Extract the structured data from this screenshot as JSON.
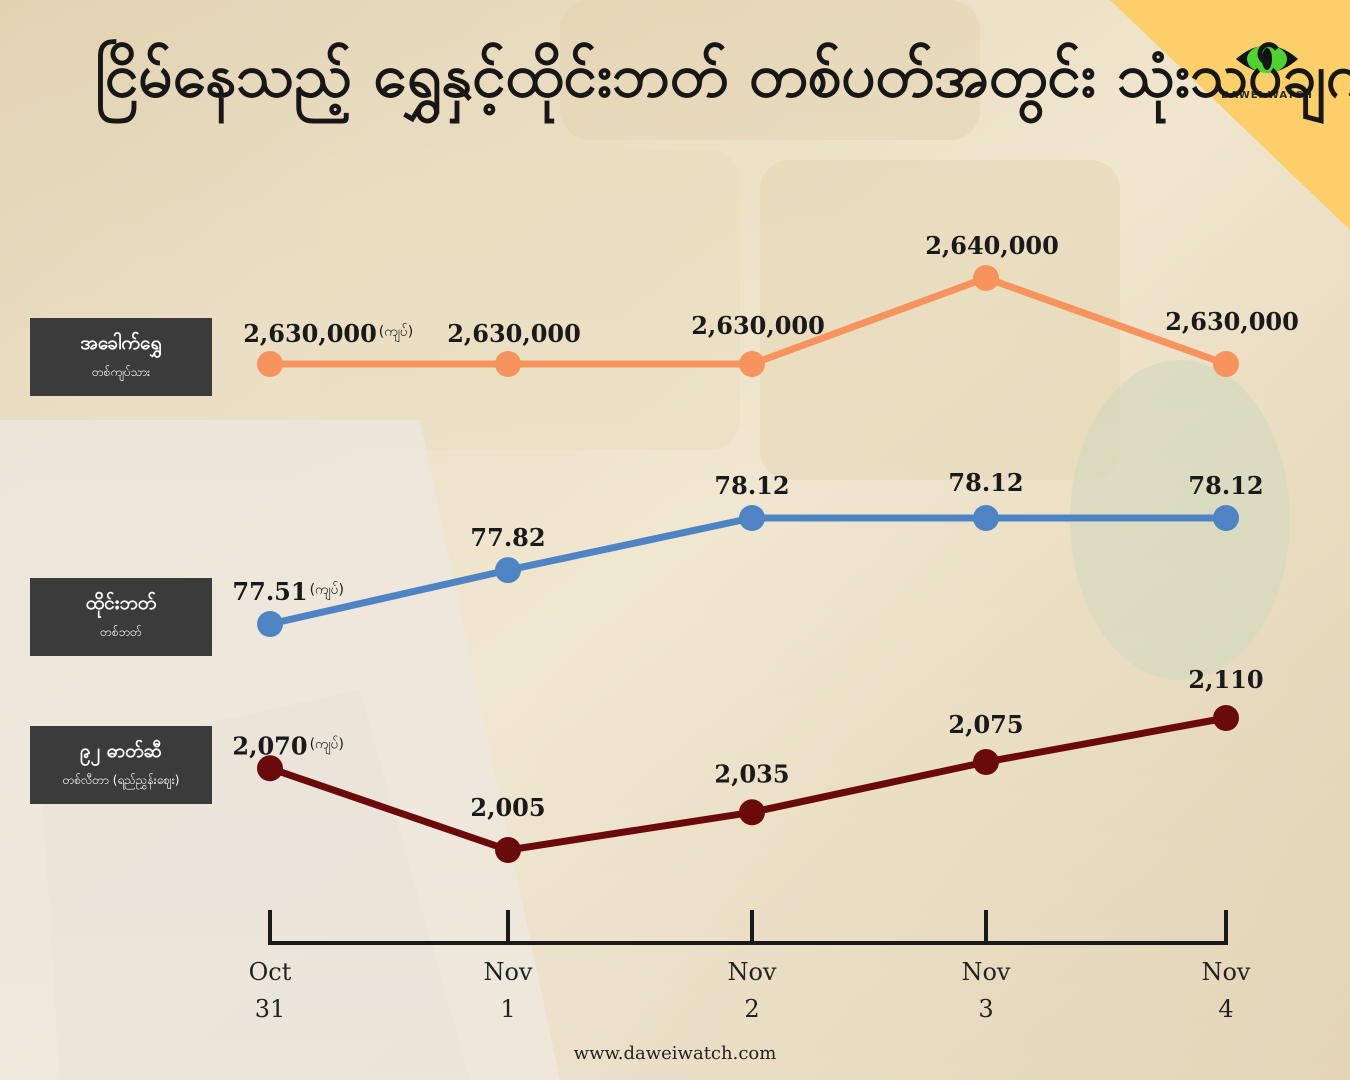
{
  "title": "ငြိမ်နေသည့် ရွှေနှင့်ထိုင်းဘတ် တစ်ပတ်အတွင်း သုံးသပ်ချက်",
  "brand": {
    "name": "DAWEI WATCH",
    "website": "www.daweiwatch.com",
    "eye_color": "#4fd12e",
    "corner_color": "#fccf6b"
  },
  "unit_note": "(ကျပ်)",
  "chart_data": {
    "type": "line",
    "categories": [
      {
        "month": "Oct",
        "day": "31"
      },
      {
        "month": "Nov",
        "day": "1"
      },
      {
        "month": "Nov",
        "day": "2"
      },
      {
        "month": "Nov",
        "day": "3"
      },
      {
        "month": "Nov",
        "day": "4"
      }
    ],
    "series": [
      {
        "name": "အခေါက်ရွှေ",
        "subtitle": "တစ်ကျပ်သား",
        "color": "#f7935c",
        "values": [
          2630000,
          2630000,
          2630000,
          2640000,
          2630000
        ],
        "labels": [
          "2,630,000",
          "2,630,000",
          "2,630,000",
          "2,640,000",
          "2,630,000"
        ]
      },
      {
        "name": "ထိုင်းဘတ်",
        "subtitle": "တစ်ဘတ်",
        "color": "#4f84c4",
        "values": [
          77.51,
          77.82,
          78.12,
          78.12,
          78.12
        ],
        "labels": [
          "77.51",
          "77.82",
          "78.12",
          "78.12",
          "78.12"
        ]
      },
      {
        "name": "၉၂ ဓာတ်ဆီ",
        "subtitle": "တစ်လီတာ (ရည်ညွှန်းဈေး)",
        "color": "#6b0a0a",
        "values": [
          2070,
          2005,
          2035,
          2075,
          2110
        ],
        "labels": [
          "2,070",
          "2,005",
          "2,035",
          "2,075",
          "2,110"
        ]
      }
    ]
  }
}
